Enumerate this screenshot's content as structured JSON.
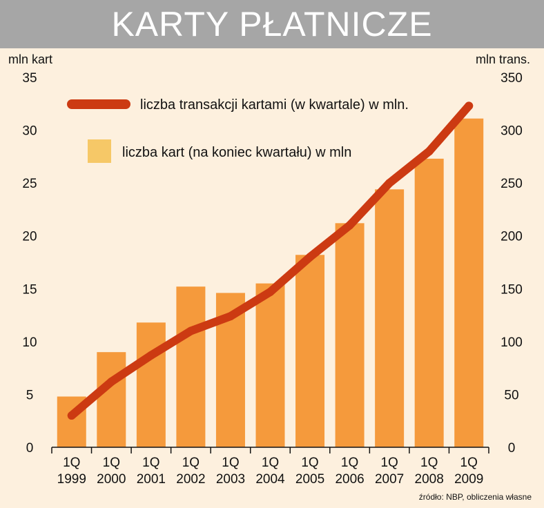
{
  "chart_data": {
    "type": "bar+line",
    "title": "KARTY PŁATNICZE",
    "categories": [
      [
        "1Q",
        "1999"
      ],
      [
        "1Q",
        "2000"
      ],
      [
        "1Q",
        "2001"
      ],
      [
        "1Q",
        "2002"
      ],
      [
        "1Q",
        "2003"
      ],
      [
        "1Q",
        "2004"
      ],
      [
        "1Q",
        "2005"
      ],
      [
        "1Q",
        "2006"
      ],
      [
        "1Q",
        "2007"
      ],
      [
        "1Q",
        "2008"
      ],
      [
        "1Q",
        "2009"
      ]
    ],
    "left_axis": {
      "unit_label": "mln kart",
      "ylim": [
        0,
        35
      ],
      "ticks": [
        0,
        5,
        10,
        15,
        20,
        25,
        30,
        35
      ]
    },
    "right_axis": {
      "unit_label": "mln trans.",
      "ylim": [
        0,
        350
      ],
      "ticks": [
        0,
        50,
        100,
        150,
        200,
        250,
        300,
        350
      ]
    },
    "series": [
      {
        "name": "liczba transakcji kartami (w kwartale) w mln.",
        "kind": "line",
        "axis": "right",
        "color": "#cc3a12",
        "values": [
          30,
          62,
          87,
          110,
          124,
          147,
          180,
          210,
          250,
          280,
          323
        ]
      },
      {
        "name": "liczba kart (na koniec kwartału) w mln",
        "kind": "bar",
        "axis": "left",
        "color": "#f59a3c",
        "legend_color": "#f6c867",
        "values": [
          4.8,
          9.0,
          11.8,
          15.2,
          14.6,
          15.5,
          18.2,
          21.2,
          24.4,
          27.3,
          31.1
        ]
      }
    ],
    "grid": false,
    "legend_position": "top-left",
    "source": "źródło: NBP, obliczenia własne"
  }
}
